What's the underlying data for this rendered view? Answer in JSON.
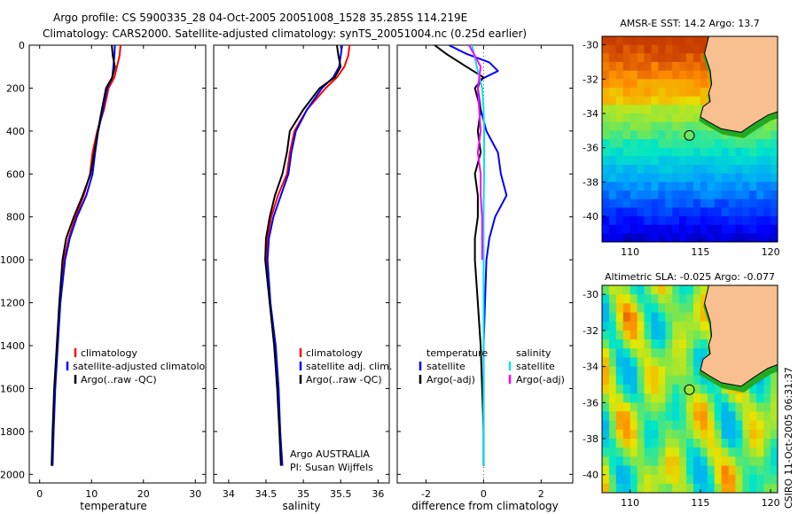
{
  "header": {
    "line1": "Argo profile: CS 5900335_28 04-Oct-2005 20051008_1528 35.285S 114.219E",
    "line2": "Climatology: CARS2000. Satellite-adjusted climatology: synTS_20051004.nc (0.25d earlier)"
  },
  "colors": {
    "clim": "#ff0000",
    "sat": "#0000ff",
    "argo": "#000000",
    "sal_sat": "#00e5ee",
    "sal_argo": "#ff00ff",
    "land": "#f8c090",
    "coast_green": "#22aa22"
  },
  "chart_data": [
    {
      "type": "line",
      "name": "temperature-profile",
      "xlabel": "temperature",
      "xlim": [
        -2,
        32
      ],
      "xticks": [
        "0",
        "10",
        "20",
        "30"
      ],
      "ylim": [
        2040,
        0
      ],
      "yticks": [
        "0",
        "200",
        "400",
        "600",
        "800",
        "1000",
        "1200",
        "1400",
        "1600",
        "1800",
        "2000"
      ],
      "legend": [
        "climatology",
        "satellite-adjusted climatology",
        "Argo(..raw -QC)"
      ],
      "series": [
        {
          "name": "climatology",
          "points": [
            [
              15.6,
              0
            ],
            [
              15.4,
              50
            ],
            [
              14.9,
              100
            ],
            [
              14.4,
              150
            ],
            [
              13.3,
              200
            ],
            [
              12.4,
              300
            ],
            [
              11.1,
              400
            ],
            [
              10.2,
              500
            ],
            [
              9.7,
              600
            ],
            [
              8.5,
              700
            ],
            [
              6.9,
              800
            ],
            [
              5.6,
              900
            ],
            [
              4.7,
              1000
            ],
            [
              3.9,
              1200
            ],
            [
              3.4,
              1400
            ],
            [
              2.9,
              1600
            ],
            [
              2.6,
              1800
            ],
            [
              2.4,
              1960
            ]
          ]
        },
        {
          "name": "satellite-adjusted climatology",
          "points": [
            [
              14.5,
              0
            ],
            [
              14.4,
              50
            ],
            [
              14.2,
              100
            ],
            [
              14.0,
              150
            ],
            [
              13.0,
              200
            ],
            [
              12.2,
              300
            ],
            [
              11.3,
              400
            ],
            [
              10.7,
              500
            ],
            [
              10.2,
              600
            ],
            [
              9.0,
              700
            ],
            [
              7.2,
              800
            ],
            [
              5.8,
              900
            ],
            [
              4.9,
              1000
            ],
            [
              4.0,
              1200
            ],
            [
              3.5,
              1400
            ],
            [
              3.0,
              1600
            ],
            [
              2.7,
              1800
            ],
            [
              2.5,
              1960
            ]
          ]
        },
        {
          "name": "Argo(..raw -QC)",
          "points": [
            [
              13.9,
              0
            ],
            [
              14.1,
              50
            ],
            [
              14.5,
              100
            ],
            [
              14.0,
              150
            ],
            [
              12.8,
              200
            ],
            [
              12.0,
              300
            ],
            [
              11.2,
              400
            ],
            [
              10.5,
              500
            ],
            [
              9.8,
              600
            ],
            [
              8.3,
              700
            ],
            [
              6.6,
              800
            ],
            [
              5.1,
              900
            ],
            [
              4.4,
              1000
            ],
            [
              3.8,
              1200
            ],
            [
              3.3,
              1400
            ],
            [
              2.8,
              1600
            ],
            [
              2.5,
              1800
            ],
            [
              2.3,
              1960
            ]
          ]
        }
      ]
    },
    {
      "type": "line",
      "name": "salinity-profile",
      "xlabel": "salinity",
      "xlim": [
        33.8,
        36.15
      ],
      "xticks": [
        "34",
        "34.5",
        "35",
        "35.5",
        "36"
      ],
      "ylim": [
        2040,
        0
      ],
      "legend": [
        "climatology",
        "satellite adj. clim.",
        "Argo(..raw -QC)"
      ],
      "annotation": [
        "Argo AUSTRALIA",
        "PI: Susan Wijffels"
      ],
      "series": [
        {
          "name": "climatology",
          "points": [
            [
              35.62,
              0
            ],
            [
              35.6,
              50
            ],
            [
              35.55,
              100
            ],
            [
              35.45,
              150
            ],
            [
              35.3,
              200
            ],
            [
              35.05,
              300
            ],
            [
              34.88,
              400
            ],
            [
              34.82,
              500
            ],
            [
              34.78,
              600
            ],
            [
              34.66,
              700
            ],
            [
              34.57,
              800
            ],
            [
              34.52,
              900
            ],
            [
              34.5,
              1000
            ],
            [
              34.55,
              1200
            ],
            [
              34.62,
              1400
            ],
            [
              34.66,
              1600
            ],
            [
              34.69,
              1800
            ],
            [
              34.71,
              1960
            ]
          ]
        },
        {
          "name": "satellite adj. clim.",
          "points": [
            [
              35.52,
              0
            ],
            [
              35.5,
              50
            ],
            [
              35.48,
              100
            ],
            [
              35.4,
              150
            ],
            [
              35.25,
              200
            ],
            [
              35.05,
              300
            ],
            [
              34.9,
              400
            ],
            [
              34.84,
              500
            ],
            [
              34.8,
              600
            ],
            [
              34.7,
              700
            ],
            [
              34.6,
              800
            ],
            [
              34.54,
              900
            ],
            [
              34.52,
              1000
            ],
            [
              34.56,
              1200
            ],
            [
              34.63,
              1400
            ],
            [
              34.67,
              1600
            ],
            [
              34.69,
              1800
            ],
            [
              34.72,
              1960
            ]
          ]
        },
        {
          "name": "Argo(..raw -QC)",
          "points": [
            [
              35.45,
              0
            ],
            [
              35.47,
              50
            ],
            [
              35.5,
              100
            ],
            [
              35.42,
              150
            ],
            [
              35.22,
              200
            ],
            [
              35.0,
              300
            ],
            [
              34.82,
              400
            ],
            [
              34.78,
              500
            ],
            [
              34.72,
              600
            ],
            [
              34.62,
              700
            ],
            [
              34.55,
              800
            ],
            [
              34.5,
              900
            ],
            [
              34.49,
              1000
            ],
            [
              34.55,
              1200
            ],
            [
              34.61,
              1400
            ],
            [
              34.65,
              1600
            ],
            [
              34.68,
              1800
            ],
            [
              34.7,
              1960
            ]
          ]
        }
      ]
    },
    {
      "type": "line",
      "name": "difference-profile",
      "xlabel": "difference from climatology",
      "xlim": [
        -3,
        3.1
      ],
      "xticks": [
        "-2",
        "0",
        "2"
      ],
      "ylim": [
        2040,
        0
      ],
      "legend_left_title": "temperature",
      "legend_right_title": "salinity",
      "legend": [
        "satellite",
        "Argo(-adj)",
        "satellite",
        "Argo(-adj)"
      ],
      "series": [
        {
          "name": "temperature satellite",
          "points": [
            [
              -1.2,
              0
            ],
            [
              -0.6,
              40
            ],
            [
              0.2,
              80
            ],
            [
              0.5,
              120
            ],
            [
              -0.1,
              160
            ],
            [
              -0.2,
              200
            ],
            [
              -0.1,
              300
            ],
            [
              0.1,
              400
            ],
            [
              0.5,
              500
            ],
            [
              0.6,
              600
            ],
            [
              0.8,
              700
            ],
            [
              0.4,
              800
            ],
            [
              0.2,
              900
            ],
            [
              0.1,
              1000
            ],
            [
              0.05,
              1200
            ],
            [
              0.0,
              1400
            ],
            [
              0.0,
              1600
            ],
            [
              0.0,
              1800
            ],
            [
              0.0,
              1960
            ]
          ]
        },
        {
          "name": "temperature Argo(-adj)",
          "points": [
            [
              -1.7,
              0
            ],
            [
              -1.3,
              40
            ],
            [
              -0.6,
              100
            ],
            [
              0.0,
              150
            ],
            [
              -0.3,
              200
            ],
            [
              -0.1,
              300
            ],
            [
              -0.2,
              400
            ],
            [
              -0.1,
              500
            ],
            [
              -0.3,
              600
            ],
            [
              -0.2,
              700
            ],
            [
              -0.2,
              800
            ],
            [
              -0.3,
              900
            ],
            [
              -0.3,
              1000
            ],
            [
              -0.2,
              1200
            ],
            [
              -0.1,
              1400
            ],
            [
              -0.05,
              1600
            ],
            [
              0.0,
              1800
            ],
            [
              0.0,
              1960
            ]
          ]
        },
        {
          "name": "salinity satellite",
          "points": [
            [
              -0.4,
              0
            ],
            [
              -0.3,
              60
            ],
            [
              -0.2,
              120
            ],
            [
              -0.05,
              200
            ],
            [
              0.0,
              300
            ],
            [
              0.02,
              400
            ],
            [
              0.02,
              600
            ],
            [
              0.0,
              800
            ],
            [
              0.0,
              1000
            ],
            [
              0.0,
              1200
            ],
            [
              0.0,
              1400
            ],
            [
              0.0,
              1600
            ],
            [
              0.0,
              1800
            ],
            [
              0.0,
              1960
            ]
          ]
        },
        {
          "name": "salinity Argo(-adj)",
          "points": [
            [
              -0.5,
              0
            ],
            [
              -0.1,
              100
            ],
            [
              -0.2,
              200
            ],
            [
              -0.15,
              300
            ],
            [
              -0.1,
              400
            ],
            [
              -0.2,
              500
            ],
            [
              -0.1,
              600
            ],
            [
              -0.1,
              700
            ],
            [
              -0.05,
              800
            ],
            [
              -0.05,
              900
            ],
            [
              -0.05,
              1000
            ]
          ]
        }
      ]
    },
    {
      "type": "heatmap",
      "name": "amsr-e-sst-map",
      "title": "AMSR-E SST: 14.2 Argo: 13.7",
      "xlim": [
        108,
        120.5
      ],
      "ylim": [
        -41.5,
        -29.5
      ],
      "xticks": [
        "110",
        "115",
        "120"
      ],
      "yticks": [
        "-30",
        "-32",
        "-34",
        "-36",
        "-38",
        "-40"
      ],
      "marker": {
        "lon": 114.219,
        "lat": -35.285
      }
    },
    {
      "type": "heatmap",
      "name": "altimetric-sla-map",
      "title": "Altimetric SLA: -0.025 Argo: -0.077",
      "xlim": [
        108,
        120.5
      ],
      "ylim": [
        -41,
        -29.5
      ],
      "xticks": [
        "110",
        "115",
        "120"
      ],
      "yticks": [
        "-30",
        "-32",
        "-34",
        "-36",
        "-38",
        "-40"
      ],
      "marker": {
        "lon": 114.219,
        "lat": -35.285
      }
    }
  ],
  "footer": {
    "credit": "CSIRO 11-Oct-2005 06:31:37"
  }
}
